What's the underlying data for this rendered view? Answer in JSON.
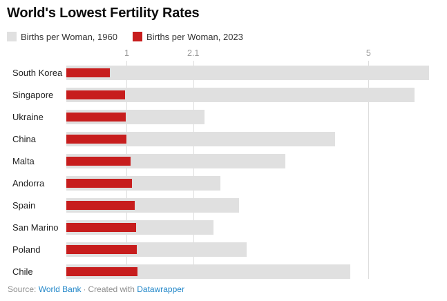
{
  "title": "World's Lowest Fertility Rates",
  "legend": [
    {
      "label": "Births per Woman, 1960",
      "color": "#e0e0e0"
    },
    {
      "label": "Births per Woman, 2023",
      "color": "#c71d1d"
    }
  ],
  "chart_data": {
    "type": "bar",
    "orientation": "horizontal",
    "title": "World's Lowest Fertility Rates",
    "categories": [
      "South Korea",
      "Singapore",
      "Ukraine",
      "China",
      "Malta",
      "Andorra",
      "Spain",
      "San Marino",
      "Poland",
      "Chile"
    ],
    "series": [
      {
        "name": "Births per Woman, 1960",
        "color": "#e0e0e0",
        "values": [
          6.0,
          5.76,
          2.29,
          4.45,
          3.62,
          2.55,
          2.86,
          2.43,
          2.98,
          4.7
        ]
      },
      {
        "name": "Births per Woman, 2023",
        "color": "#c71d1d",
        "values": [
          0.72,
          0.97,
          0.98,
          1.0,
          1.06,
          1.09,
          1.13,
          1.15,
          1.17,
          1.18
        ]
      }
    ],
    "x_axis": {
      "ticks": [
        1,
        2.1,
        5
      ],
      "tick_labels": [
        "1",
        "2.1",
        "5"
      ],
      "range": [
        0,
        6.3
      ],
      "gridlines": true,
      "gridline_color": "#dddddd"
    },
    "legend_position": "top",
    "grid": true
  },
  "footer": {
    "source_label": "Source:",
    "source_link": "World Bank",
    "separator": "·",
    "created_label": "Created with",
    "created_link": "Datawrapper",
    "link_color": "#2287c9"
  }
}
